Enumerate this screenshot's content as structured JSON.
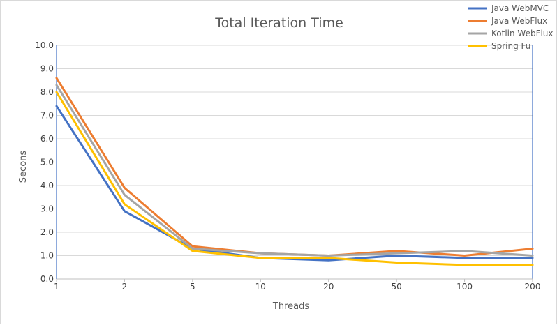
{
  "chart_data": {
    "type": "line",
    "title": "Total Iteration Time",
    "xlabel": "Threads",
    "ylabel": "Secons",
    "categories": [
      "1",
      "2",
      "5",
      "10",
      "20",
      "50",
      "100",
      "200"
    ],
    "ylim": [
      0,
      10
    ],
    "yticks": [
      "0.0",
      "1.0",
      "2.0",
      "3.0",
      "4.0",
      "5.0",
      "6.0",
      "7.0",
      "8.0",
      "9.0",
      "10.0"
    ],
    "grid": true,
    "legend_position": "top-right",
    "series": [
      {
        "name": "Java WebMVC",
        "color": "#4472c4",
        "values": [
          7.4,
          2.9,
          1.3,
          0.9,
          0.8,
          1.0,
          0.9,
          0.9
        ]
      },
      {
        "name": "Java WebFlux",
        "color": "#ed7d31",
        "values": [
          8.6,
          3.9,
          1.4,
          1.1,
          1.0,
          1.2,
          1.0,
          1.3
        ]
      },
      {
        "name": "Kotlin WebFlux",
        "color": "#a5a5a5",
        "values": [
          8.3,
          3.6,
          1.3,
          1.1,
          1.0,
          1.1,
          1.2,
          1.0
        ]
      },
      {
        "name": "Spring Fu",
        "color": "#ffc000",
        "values": [
          8.0,
          3.2,
          1.2,
          0.9,
          0.9,
          0.7,
          0.6,
          0.6
        ]
      }
    ]
  }
}
